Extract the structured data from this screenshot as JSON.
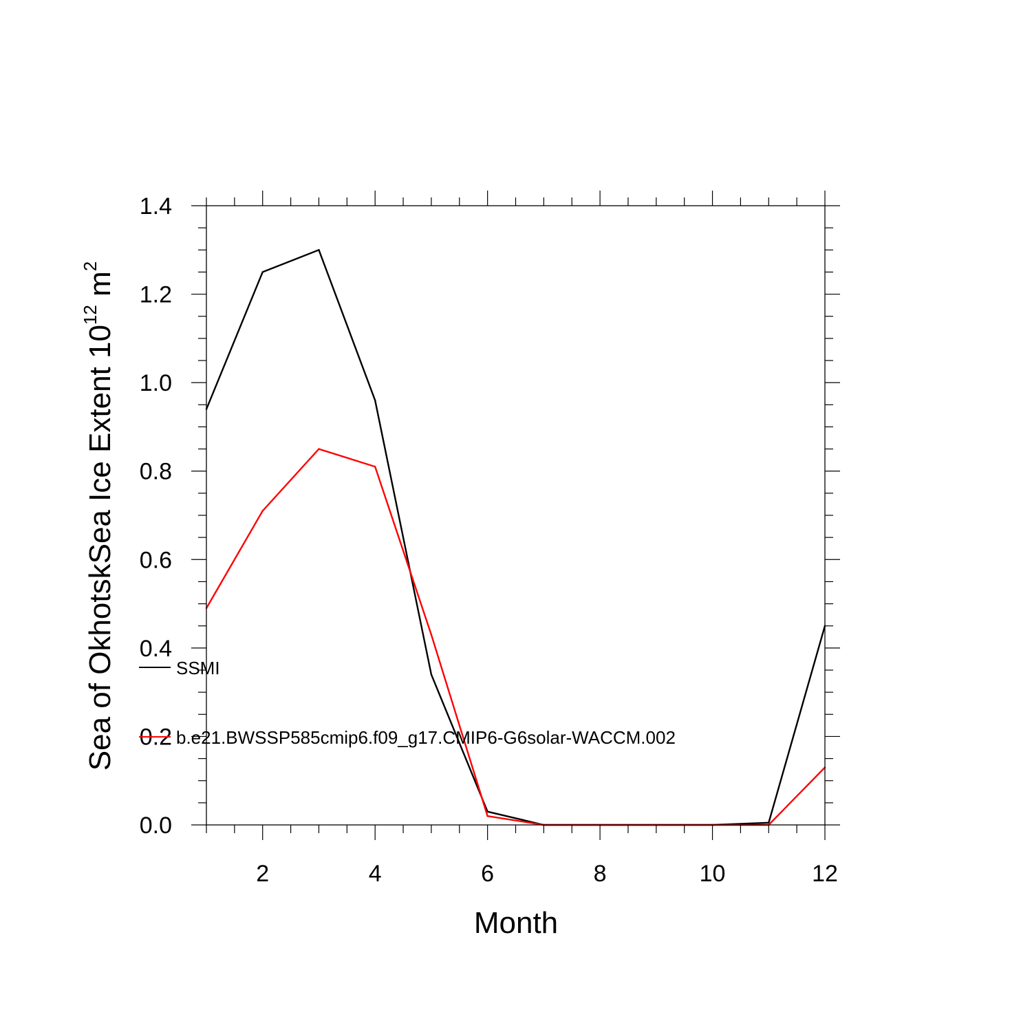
{
  "chart_data": {
    "type": "line",
    "xlabel": "Month",
    "ylabel": {
      "prefix": "Sea of OkhotskSea Ice Extent 10",
      "sup1": "12",
      "mid": " m",
      "sup2": "2"
    },
    "xlim": [
      1,
      12
    ],
    "ylim": [
      0,
      1.4
    ],
    "x_ticks": [
      2,
      4,
      6,
      8,
      10,
      12
    ],
    "y_ticks": [
      "0.0",
      "0.2",
      "0.4",
      "0.6",
      "0.8",
      "1.0",
      "1.2",
      "1.4"
    ],
    "x": [
      1,
      2,
      3,
      4,
      5,
      6,
      7,
      8,
      9,
      10,
      11,
      12
    ],
    "grid": false,
    "legend_position": "left, inside plot",
    "series": [
      {
        "name": "SSMI",
        "color": "#000000",
        "values": [
          0.94,
          1.25,
          1.3,
          0.96,
          0.34,
          0.03,
          0.0,
          0.0,
          0.0,
          0.0,
          0.005,
          0.45
        ]
      },
      {
        "name": "b.e21.BWSSP585cmip6.f09_g17.CMIP6-G6solar-WACCM.002",
        "color": "#ff0000",
        "values": [
          0.49,
          0.71,
          0.85,
          0.81,
          0.43,
          0.02,
          0.0,
          0.0,
          0.0,
          0.0,
          0.0,
          0.13
        ]
      }
    ]
  }
}
